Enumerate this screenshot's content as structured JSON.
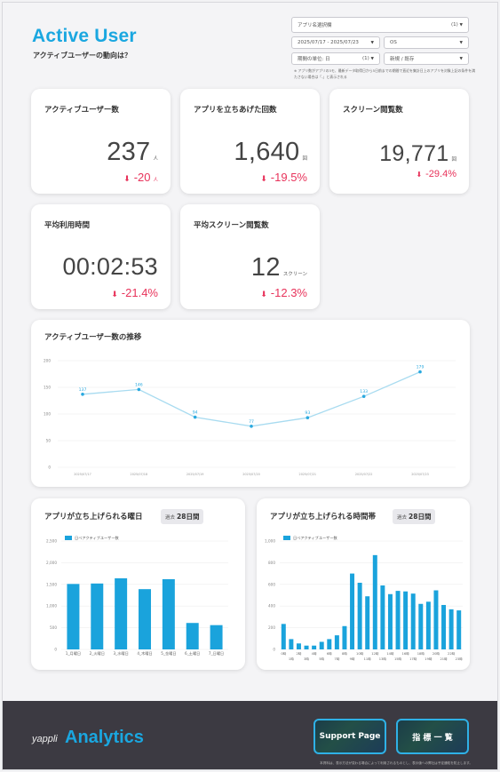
{
  "header": {
    "title": "Active User",
    "subtitle": "アクティブユーザーの動向は？"
  },
  "controls": {
    "app_select": {
      "label": "アプリ名選択欄",
      "suffix": "(1)"
    },
    "date_range": "2025/07/17 - 2025/07/23",
    "os": "OS",
    "period_unit": {
      "label": "期間の単位: 日",
      "suffix": "(1)"
    },
    "user_type": "新規 / 既存",
    "note": "※ アプリ数がアプリの3モ、最新データ取得日から5日前までの期間で直近を集計日上のアプリを対象上記の条件を満たさない場合は「-」と表示される"
  },
  "kpis": {
    "active_users": {
      "title": "アクティブユーザー数",
      "value": "237",
      "unit": "人",
      "delta": "-20",
      "delta_unit": "人"
    },
    "app_launches": {
      "title": "アプリを立ちあげた回数",
      "value": "1,640",
      "unit": "回",
      "delta": "-19.5%"
    },
    "screen_views": {
      "title": "スクリーン閲覧数",
      "value": "19,771",
      "unit": "回",
      "delta": "-29.4%"
    },
    "avg_time": {
      "title": "平均利用時間",
      "value": "00:02:53",
      "unit": "",
      "delta": "-21.4%"
    },
    "avg_screens": {
      "title": "平均スクリーン閲覧数",
      "value": "12",
      "unit": "スクリーン",
      "delta": "-12.3%"
    },
    "delta_icon": "arrow-down-icon"
  },
  "chart_data": [
    {
      "type": "line",
      "title": "アクティブユーザー数の推移",
      "x": [
        "2025/07/17",
        "2025/07/18",
        "2025/07/19",
        "2025/07/20",
        "2025/07/21",
        "2025/07/22",
        "2025/07/23"
      ],
      "values": [
        137,
        146,
        94,
        77,
        93,
        133,
        179
      ],
      "ylim": [
        0,
        200
      ],
      "yticks": [
        0,
        50,
        100,
        150,
        200
      ],
      "grid": true,
      "color": "#a8dbf0"
    },
    {
      "type": "bar",
      "title": "アプリが立ち上げられる曜日",
      "badge": {
        "prefix": "過去",
        "value": "28日間"
      },
      "legend": "日ベアクティブユーザー数",
      "categories": [
        "1_月曜日",
        "2_火曜日",
        "3_水曜日",
        "4_木曜日",
        "5_金曜日",
        "6_土曜日",
        "7_日曜日"
      ],
      "values": [
        1510,
        1520,
        1640,
        1390,
        1620,
        610,
        560
      ],
      "ylim": [
        0,
        2500
      ],
      "yticks": [
        0,
        500,
        1000,
        1500,
        2000,
        2500
      ],
      "yticklabels": [
        "0",
        "500",
        "1,000",
        "1,500",
        "2,000",
        "2,500"
      ],
      "color": "#1aa3dc"
    },
    {
      "type": "bar",
      "title": "アプリが立ち上げられる時間帯",
      "badge": {
        "prefix": "過去",
        "value": "28日間"
      },
      "legend": "日ベアクティブユーザー数",
      "categories": [
        "0時",
        "1時",
        "2時",
        "3時",
        "4時",
        "5時",
        "6時",
        "7時",
        "8時",
        "9時",
        "10時",
        "11時",
        "12時",
        "13時",
        "14時",
        "15時",
        "16時",
        "17時",
        "18時",
        "19時",
        "20時",
        "21時",
        "22時",
        "23時"
      ],
      "values": [
        235,
        95,
        55,
        35,
        35,
        70,
        95,
        130,
        215,
        700,
        615,
        490,
        870,
        590,
        510,
        540,
        535,
        515,
        420,
        440,
        545,
        410,
        370,
        360
      ],
      "ylim": [
        0,
        1000
      ],
      "yticks": [
        0,
        200,
        400,
        600,
        800,
        1000
      ],
      "yticklabels": [
        "0",
        "200",
        "400",
        "600",
        "800",
        "1,000"
      ],
      "color": "#1aa3dc"
    }
  ],
  "footer": {
    "brand_small": "yappli",
    "brand_big": "Analytics",
    "support_button": "Support Page",
    "index_button": "指 標 一 覧",
    "footnote": "本資料は、表示方法が変わる場合によって利用されるものとし、表示値への弊社は予定通知を防止します。"
  }
}
